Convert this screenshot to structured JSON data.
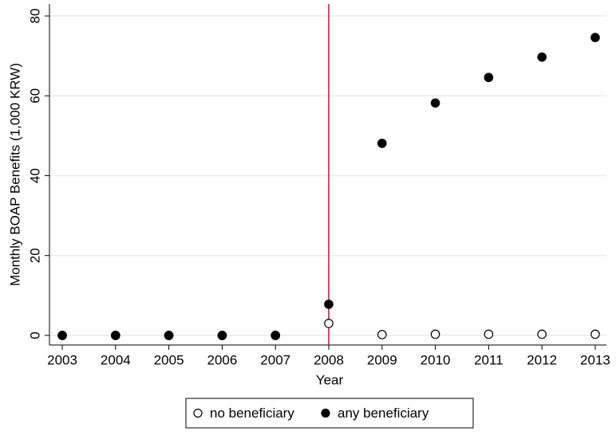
{
  "chart_data": {
    "type": "scatter",
    "x_label": "Year",
    "y_label": "Monthly BOAP Benefits (1,000 KRW)",
    "x": [
      2003,
      2004,
      2005,
      2006,
      2007,
      2008,
      2009,
      2010,
      2011,
      2012,
      2013
    ],
    "series": [
      {
        "name": "no beneficiary",
        "color": "#000000",
        "marker": "hollow",
        "values": [
          0,
          0,
          0,
          0,
          0,
          3.0,
          0.2,
          0.3,
          0.3,
          0.3,
          0.3
        ]
      },
      {
        "name": "any beneficiary",
        "color": "#000000",
        "marker": "filled",
        "values": [
          0,
          0,
          0,
          0,
          0,
          7.8,
          48.1,
          58.2,
          64.6,
          69.7,
          74.6
        ]
      }
    ],
    "xlim": [
      2002.76,
      2013.21
    ],
    "ylim": [
      -2.4,
      83
    ],
    "xticks": [
      2003,
      2004,
      2005,
      2006,
      2007,
      2008,
      2009,
      2010,
      2011,
      2012,
      2013
    ],
    "yticks": [
      0,
      20,
      40,
      60,
      80
    ],
    "grid": true,
    "vline": {
      "x": 2008,
      "color": "#c8102e"
    },
    "legend": "bottom"
  }
}
